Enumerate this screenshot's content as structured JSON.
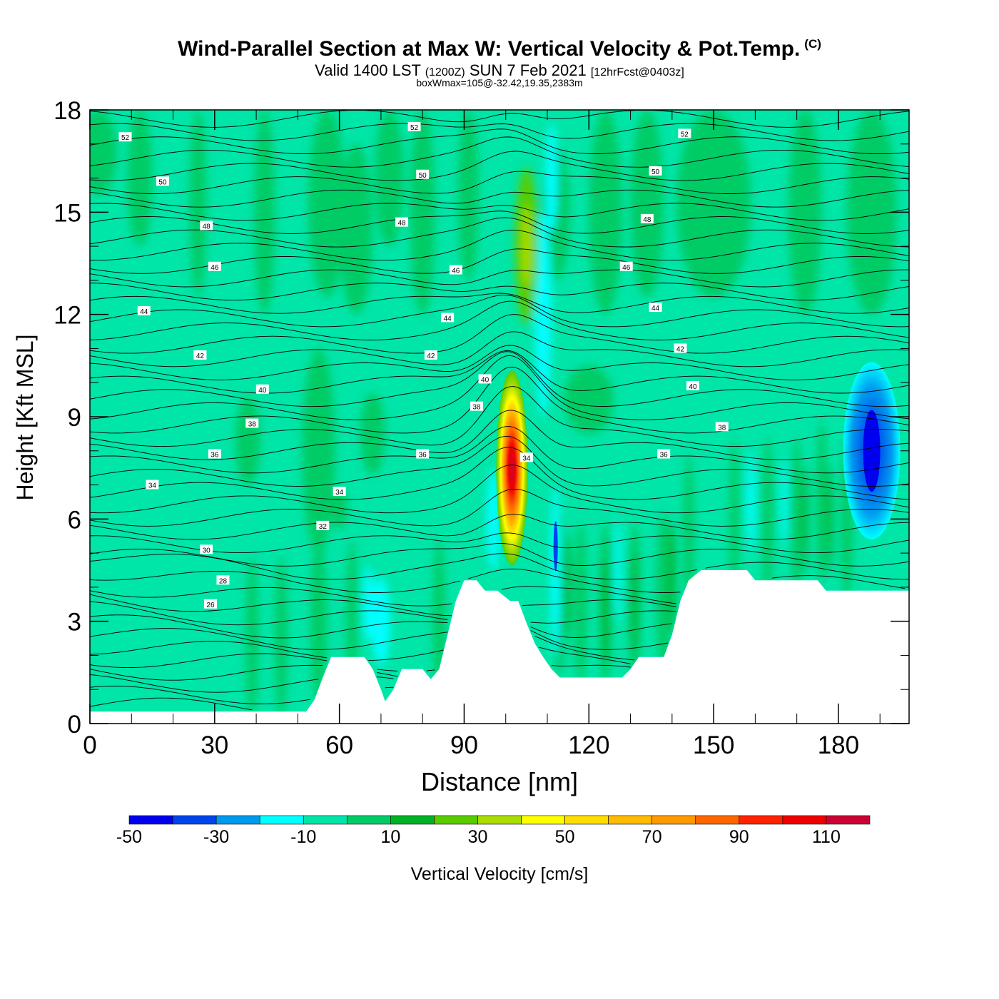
{
  "header": {
    "title": "Wind-Parallel Section at Max W: Vertical Velocity & Pot.Temp.",
    "copyright_mark": "(C)",
    "valid_prefix": "Valid 1400 LST",
    "valid_utc": "(1200Z)",
    "valid_date": "SUN 7 Feb 2021",
    "forecast_info": "[12hrFcst@0403z]",
    "box_wmax": "boxWmax=105@-32.42,19.35,2383m"
  },
  "chart_data": {
    "type": "heatmap",
    "xlabel": "Distance [nm]",
    "ylabel": "Height [Kft MSL]",
    "xlim": [
      0,
      197
    ],
    "ylim": [
      0,
      18
    ],
    "x_ticks": [
      "0",
      "30",
      "60",
      "90",
      "120",
      "150",
      "180"
    ],
    "y_ticks": [
      "0",
      "3",
      "6",
      "9",
      "12",
      "15",
      "18"
    ],
    "colorbar": {
      "label": "Vertical Velocity [cm/s]",
      "bounds": [
        -50,
        120
      ],
      "step": 10,
      "tick_labels": [
        "-50",
        "-30",
        "-10",
        "10",
        "30",
        "50",
        "70",
        "90",
        "110"
      ],
      "colors": [
        "#0000ee",
        "#0044ee",
        "#0099ee",
        "#00ffff",
        "#00e5a8",
        "#00cc66",
        "#00b324",
        "#59cc00",
        "#aadd00",
        "#ffff00",
        "#ffdd00",
        "#ffbb00",
        "#ff9900",
        "#ff6600",
        "#ff2200",
        "#ee0000",
        "#cc0033"
      ]
    },
    "terrain_kft": [
      [
        0,
        0.35
      ],
      [
        52,
        0.35
      ],
      [
        54,
        0.7
      ],
      [
        56,
        1.35
      ],
      [
        58,
        1.95
      ],
      [
        66,
        1.95
      ],
      [
        68,
        1.6
      ],
      [
        70,
        1.0
      ],
      [
        71,
        0.65
      ],
      [
        73,
        1.0
      ],
      [
        75,
        1.6
      ],
      [
        80,
        1.6
      ],
      [
        82,
        1.3
      ],
      [
        84,
        1.6
      ],
      [
        86,
        2.6
      ],
      [
        88,
        3.6
      ],
      [
        90,
        4.2
      ],
      [
        93,
        4.2
      ],
      [
        95,
        3.9
      ],
      [
        98,
        3.9
      ],
      [
        101,
        3.6
      ],
      [
        103,
        3.6
      ],
      [
        105,
        2.95
      ],
      [
        107,
        2.35
      ],
      [
        109,
        1.95
      ],
      [
        111,
        1.6
      ],
      [
        113,
        1.35
      ],
      [
        128,
        1.35
      ],
      [
        130,
        1.6
      ],
      [
        132,
        1.95
      ],
      [
        138,
        1.95
      ],
      [
        140,
        2.6
      ],
      [
        142,
        3.6
      ],
      [
        144,
        4.2
      ],
      [
        147,
        4.5
      ],
      [
        158,
        4.5
      ],
      [
        160,
        4.2
      ],
      [
        175,
        4.2
      ],
      [
        177,
        3.9
      ],
      [
        197,
        3.9
      ]
    ],
    "updraft_core": {
      "x": 101.5,
      "y_kft": 7.5,
      "peak_cm_s": 105
    },
    "downdraft_core": {
      "x": 188,
      "y_kft": 8,
      "min_cm_s": -40
    },
    "theta_contour_labels": [
      {
        "x": 8.5,
        "y": 17.2,
        "text": "52"
      },
      {
        "x": 78,
        "y": 17.5,
        "text": "52"
      },
      {
        "x": 143,
        "y": 17.3,
        "text": "52"
      },
      {
        "x": 17.5,
        "y": 15.9,
        "text": "50"
      },
      {
        "x": 80,
        "y": 16.1,
        "text": "50"
      },
      {
        "x": 136,
        "y": 16.2,
        "text": "50"
      },
      {
        "x": 28,
        "y": 14.6,
        "text": "48"
      },
      {
        "x": 75,
        "y": 14.7,
        "text": "48"
      },
      {
        "x": 134,
        "y": 14.8,
        "text": "48"
      },
      {
        "x": 30,
        "y": 13.4,
        "text": "46"
      },
      {
        "x": 88,
        "y": 13.3,
        "text": "46"
      },
      {
        "x": 129,
        "y": 13.4,
        "text": "46"
      },
      {
        "x": 13,
        "y": 12.1,
        "text": "44"
      },
      {
        "x": 86,
        "y": 11.9,
        "text": "44"
      },
      {
        "x": 136,
        "y": 12.2,
        "text": "44"
      },
      {
        "x": 26.5,
        "y": 10.8,
        "text": "42"
      },
      {
        "x": 82,
        "y": 10.8,
        "text": "42"
      },
      {
        "x": 142,
        "y": 11.0,
        "text": "42"
      },
      {
        "x": 41.5,
        "y": 9.8,
        "text": "40"
      },
      {
        "x": 95,
        "y": 10.1,
        "text": "40"
      },
      {
        "x": 145,
        "y": 9.9,
        "text": "40"
      },
      {
        "x": 39,
        "y": 8.8,
        "text": "38"
      },
      {
        "x": 93,
        "y": 9.3,
        "text": "38"
      },
      {
        "x": 152,
        "y": 8.7,
        "text": "38"
      },
      {
        "x": 30,
        "y": 7.9,
        "text": "36"
      },
      {
        "x": 80,
        "y": 7.9,
        "text": "36"
      },
      {
        "x": 138,
        "y": 7.9,
        "text": "36"
      },
      {
        "x": 15,
        "y": 7.0,
        "text": "34"
      },
      {
        "x": 60,
        "y": 6.8,
        "text": "34"
      },
      {
        "x": 105,
        "y": 7.8,
        "text": "34"
      },
      {
        "x": 56,
        "y": 5.8,
        "text": "32"
      },
      {
        "x": 28,
        "y": 5.1,
        "text": "30"
      },
      {
        "x": 32,
        "y": 4.2,
        "text": "28"
      },
      {
        "x": 29,
        "y": 3.5,
        "text": "26"
      }
    ]
  }
}
